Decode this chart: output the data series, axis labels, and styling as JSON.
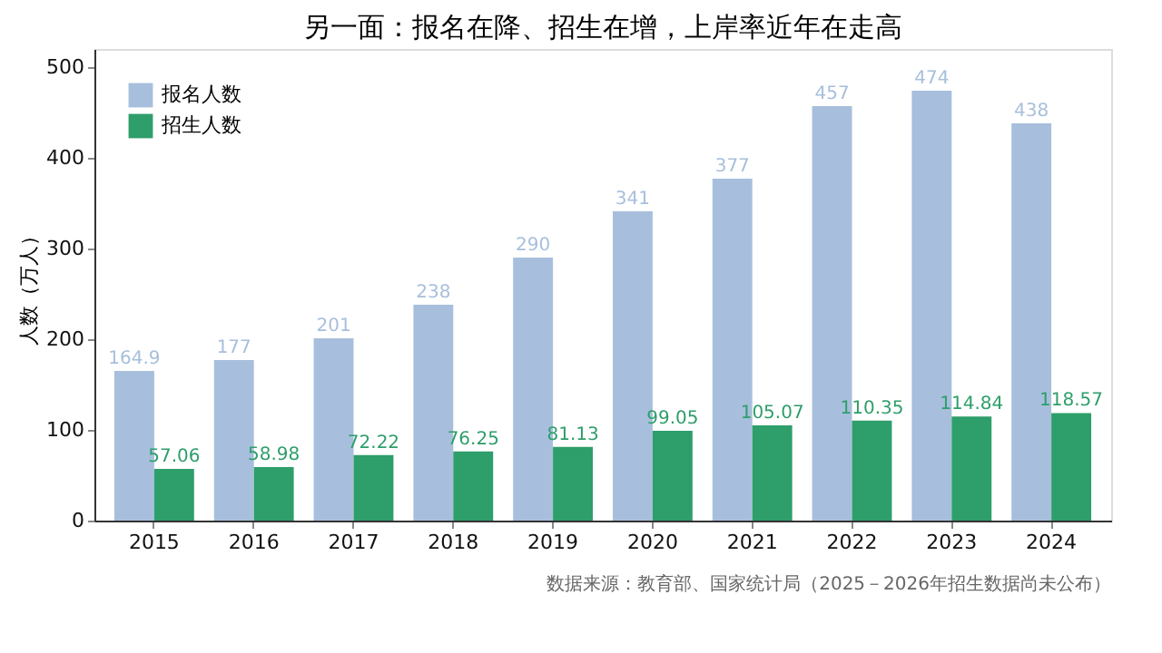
{
  "chart_data": {
    "type": "bar",
    "title": "另一面：报名在降、招生在增，上岸率近年在走高",
    "ylabel": "人数（万人）",
    "categories": [
      "2015",
      "2016",
      "2017",
      "2018",
      "2019",
      "2020",
      "2021",
      "2022",
      "2023",
      "2024"
    ],
    "series": [
      {
        "name": "报名人数",
        "color": "#a7bfdc",
        "values": [
          164.9,
          177,
          201,
          238,
          290,
          341,
          377,
          457,
          474,
          438
        ]
      },
      {
        "name": "招生人数",
        "color": "#2e9e6a",
        "values": [
          57.06,
          58.98,
          72.22,
          76.25,
          81.13,
          99.05,
          105.07,
          110.35,
          114.84,
          118.57
        ]
      }
    ],
    "ylim": [
      0,
      520
    ],
    "yticks": [
      0,
      100,
      200,
      300,
      400,
      500
    ],
    "grid": false,
    "legend": "top left",
    "data_labels": true,
    "annotations": [
      "数据来源：教育部、国家统计局（2025－2026年招生数据尚未公布）"
    ]
  }
}
